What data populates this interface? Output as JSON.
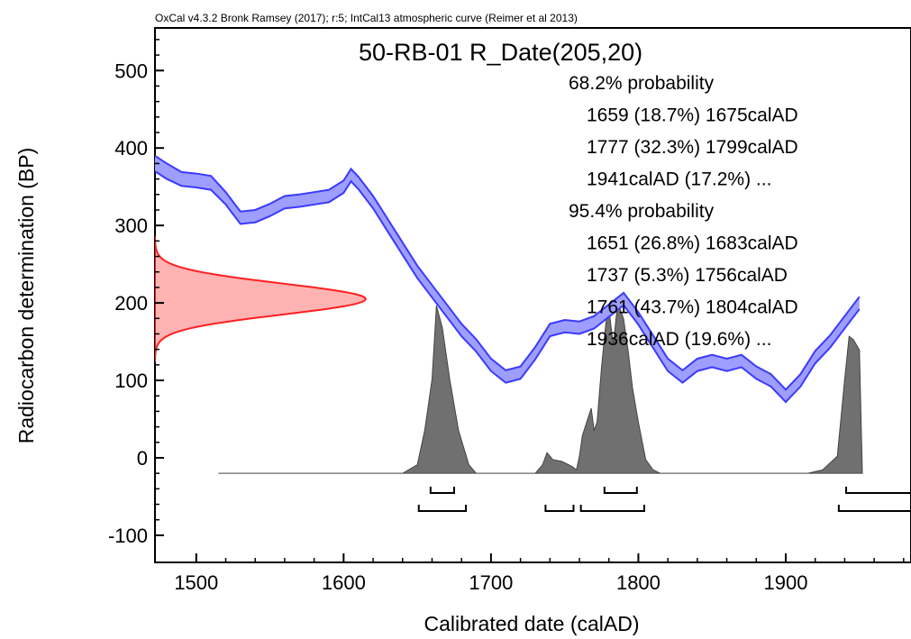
{
  "chart_data": {
    "type": "area",
    "credit": "OxCal v4.3.2 Bronk Ramsey (2017); r:5; IntCal13 atmospheric curve (Reimer et al 2013)",
    "title": "50-RB-01 R_Date(205,20)",
    "xlabel": "Calibrated date (calAD)",
    "ylabel": "Radiocarbon determination (BP)",
    "xlim": [
      1472,
      1985
    ],
    "ylim": [
      -135,
      555
    ],
    "x_ticks": [
      1500,
      1600,
      1700,
      1800,
      1900
    ],
    "y_ticks": [
      -100,
      0,
      100,
      200,
      300,
      400,
      500
    ],
    "grid": false,
    "colors": {
      "curve": "#3a3aff",
      "curve_fill": "#9e9eff",
      "measurement": "#ff2020",
      "measurement_fill": "#ffb3b3",
      "posterior": "#707070"
    },
    "probability_text": [
      "68.2% probability",
      "1659 (18.7%) 1675calAD",
      "1777 (32.3%) 1799calAD",
      "1941calAD (17.2%) ...",
      "95.4% probability",
      "1651 (26.8%) 1683calAD",
      "1737 (5.3%) 1756calAD",
      "1761 (43.7%) 1804calAD",
      "1936calAD (19.6%) ..."
    ],
    "calibration_curve": {
      "name": "IntCal13",
      "x": [
        1472,
        1480,
        1490,
        1500,
        1510,
        1520,
        1530,
        1540,
        1550,
        1560,
        1570,
        1580,
        1590,
        1600,
        1605,
        1610,
        1620,
        1630,
        1640,
        1650,
        1660,
        1670,
        1680,
        1690,
        1700,
        1710,
        1720,
        1730,
        1740,
        1750,
        1760,
        1770,
        1780,
        1790,
        1800,
        1810,
        1820,
        1830,
        1840,
        1850,
        1860,
        1870,
        1880,
        1890,
        1900,
        1910,
        1920,
        1930,
        1940,
        1950
      ],
      "y": [
        380,
        370,
        360,
        358,
        355,
        335,
        310,
        312,
        320,
        330,
        332,
        335,
        338,
        350,
        365,
        355,
        330,
        300,
        270,
        240,
        215,
        190,
        165,
        145,
        120,
        105,
        110,
        135,
        165,
        170,
        168,
        175,
        190,
        205,
        180,
        150,
        120,
        105,
        120,
        125,
        120,
        125,
        110,
        100,
        80,
        100,
        130,
        150,
        175,
        200
      ],
      "sigma": [
        10,
        10,
        9,
        9,
        9,
        8,
        8,
        8,
        8,
        8,
        8,
        8,
        8,
        8,
        8,
        8,
        8,
        8,
        8,
        8,
        8,
        8,
        8,
        8,
        8,
        8,
        8,
        8,
        8,
        8,
        8,
        8,
        8,
        8,
        8,
        8,
        8,
        8,
        8,
        8,
        8,
        8,
        8,
        8,
        8,
        8,
        8,
        8,
        8,
        8
      ]
    },
    "radiocarbon_measurement": {
      "mean": 205,
      "sigma": 20
    },
    "posterior": {
      "x": [
        1515,
        1640,
        1650,
        1655,
        1660,
        1663,
        1667,
        1672,
        1678,
        1685,
        1690,
        1730,
        1735,
        1738,
        1742,
        1748,
        1755,
        1758,
        1760,
        1762,
        1765,
        1768,
        1770,
        1772,
        1775,
        1778,
        1780,
        1783,
        1786,
        1790,
        1793,
        1796,
        1800,
        1805,
        1810,
        1815,
        1915,
        1925,
        1935,
        1940,
        1943,
        1946,
        1950,
        1952
      ],
      "density": [
        0,
        0,
        0.05,
        0.25,
        0.55,
        0.98,
        0.85,
        0.55,
        0.25,
        0.05,
        0,
        0,
        0.05,
        0.12,
        0.08,
        0.07,
        0.04,
        0.02,
        0.1,
        0.22,
        0.3,
        0.38,
        0.25,
        0.3,
        0.62,
        0.88,
        0.96,
        0.75,
        1.0,
        0.9,
        0.72,
        0.5,
        0.3,
        0.08,
        0.02,
        0,
        0,
        0.02,
        0.1,
        0.55,
        0.8,
        0.78,
        0.72,
        0
      ]
    },
    "ranges_68": [
      [
        1659,
        1675
      ],
      [
        1777,
        1799
      ],
      [
        1941,
        1990
      ]
    ],
    "ranges_95": [
      [
        1651,
        1683
      ],
      [
        1737,
        1756
      ],
      [
        1761,
        1804
      ],
      [
        1936,
        1990
      ]
    ]
  }
}
